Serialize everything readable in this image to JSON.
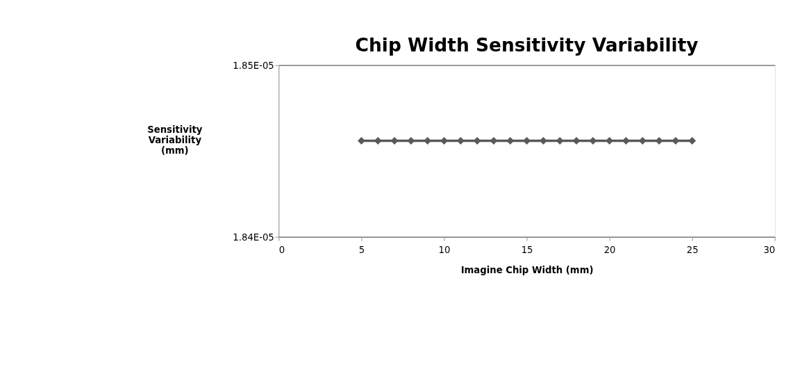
{
  "chart_data": {
    "type": "line",
    "title": "Chip Width Sensitivity Variability",
    "xlabel": "Imagine Chip Width (mm)",
    "ylabel": "Sensitivity Variability (mm)",
    "x": [
      5,
      6,
      7,
      8,
      9,
      10,
      11,
      12,
      13,
      14,
      15,
      16,
      17,
      18,
      19,
      20,
      21,
      22,
      23,
      24,
      25
    ],
    "series": [
      {
        "color": "#595959",
        "values": [
          1.8456e-05,
          1.8456e-05,
          1.8456e-05,
          1.8456e-05,
          1.8456e-05,
          1.8456e-05,
          1.8456e-05,
          1.8456e-05,
          1.8456e-05,
          1.8456e-05,
          1.8456e-05,
          1.8456e-05,
          1.8456e-05,
          1.8456e-05,
          1.8456e-05,
          1.8456e-05,
          1.8456e-05,
          1.8456e-05,
          1.8456e-05,
          1.8456e-05,
          1.8456e-05
        ]
      }
    ],
    "xlim": [
      0,
      30
    ],
    "xticks": [
      0,
      5,
      10,
      15,
      20,
      25,
      30
    ],
    "ylim": [
      1.84e-05,
      1.85e-05
    ],
    "yticks": [
      {
        "value": 1.84e-05,
        "label": "1.84E-05"
      },
      {
        "value": 1.85e-05,
        "label": "1.85E-05"
      }
    ],
    "grid": "y",
    "marker": "diamond",
    "line_style": "solid"
  }
}
